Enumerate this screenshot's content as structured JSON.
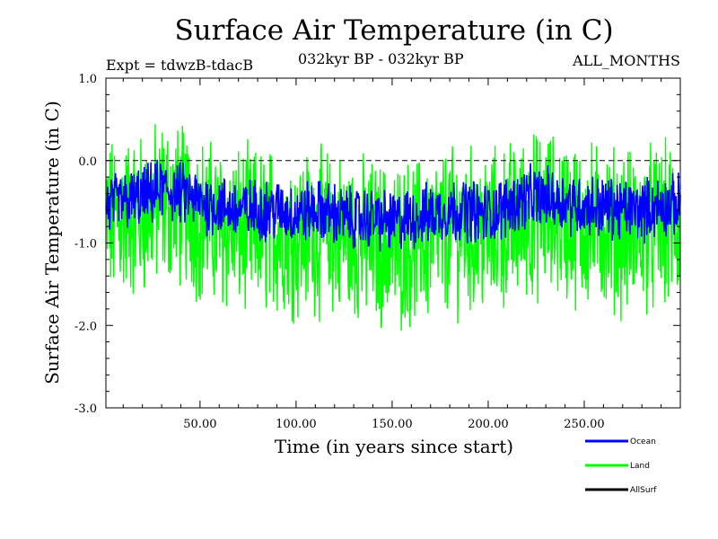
{
  "chart_data": {
    "type": "line",
    "title": "Surface Air Temperature (in C)",
    "subtitle": "032kyr BP - 032kyr BP",
    "experiment_label": "Expt = tdwzB-tdacB",
    "months_label": "ALL_MONTHS",
    "xlabel": "Time (in years since start)",
    "ylabel": "Surface Air Temperature (in C)",
    "xlim": [
      1,
      300
    ],
    "ylim": [
      -3.0,
      1.0
    ],
    "x_ticks": [
      50,
      100,
      150,
      200,
      250
    ],
    "x_tick_labels": [
      "50.00",
      "100.00",
      "150.00",
      "200.00",
      "250.00"
    ],
    "y_ticks": [
      1.0,
      0.0,
      -1.0,
      -2.0,
      -3.0
    ],
    "y_tick_labels": [
      "1.0",
      "0.0",
      "-1.0",
      "-2.0",
      "-3.0"
    ],
    "reference_line": 0.0,
    "legend_position": "bottom-right",
    "series": [
      {
        "name": "Ocean",
        "color": "#0000ff",
        "x": [
          1,
          10,
          20,
          30,
          40,
          50,
          60,
          70,
          80,
          90,
          100,
          110,
          120,
          130,
          140,
          150,
          160,
          170,
          180,
          190,
          200,
          210,
          220,
          230,
          240,
          250,
          260,
          270,
          280,
          290,
          300
        ],
        "values": [
          -0.55,
          -0.5,
          -0.45,
          -0.35,
          -0.4,
          -0.5,
          -0.55,
          -0.6,
          -0.6,
          -0.6,
          -0.65,
          -0.6,
          -0.65,
          -0.7,
          -0.7,
          -0.75,
          -0.7,
          -0.65,
          -0.6,
          -0.6,
          -0.65,
          -0.55,
          -0.45,
          -0.45,
          -0.5,
          -0.55,
          -0.55,
          -0.6,
          -0.6,
          -0.55,
          -0.55
        ],
        "amplitude": 0.32
      },
      {
        "name": "Land",
        "color": "#00ff00",
        "x": [
          1,
          10,
          20,
          30,
          40,
          50,
          60,
          70,
          80,
          90,
          100,
          110,
          120,
          130,
          140,
          150,
          160,
          170,
          180,
          190,
          200,
          210,
          220,
          230,
          240,
          250,
          260,
          270,
          280,
          290,
          300
        ],
        "values": [
          -0.75,
          -0.7,
          -0.65,
          -0.5,
          -0.55,
          -0.7,
          -0.8,
          -0.85,
          -0.85,
          -0.85,
          -0.9,
          -0.85,
          -0.9,
          -0.95,
          -1.0,
          -1.05,
          -1.0,
          -0.95,
          -0.85,
          -0.85,
          -0.9,
          -0.8,
          -0.7,
          -0.65,
          -0.7,
          -0.8,
          -0.8,
          -0.85,
          -0.85,
          -0.8,
          -0.8
        ],
        "amplitude": 0.85
      },
      {
        "name": "AllSurf",
        "color": "#000000",
        "x": [],
        "values": []
      }
    ]
  }
}
